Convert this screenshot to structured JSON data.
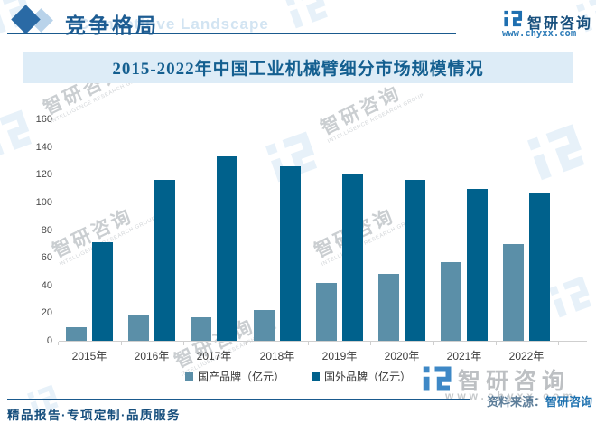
{
  "header": {
    "section_title": "竞争格局",
    "section_title_en": "Competitive Landscape",
    "brand_name": "智研咨询",
    "brand_url": "www.chyxx.com"
  },
  "chart_data": {
    "type": "bar",
    "title": "2015-2022年中国工业机械臂细分市场规模情况",
    "categories": [
      "2015年",
      "2016年",
      "2017年",
      "2018年",
      "2019年",
      "2020年",
      "2021年",
      "2022年"
    ],
    "series": [
      {
        "name": "国产品牌（亿元）",
        "color": "#5b8fa8",
        "values": [
          10,
          18,
          17,
          22,
          42,
          48,
          57,
          70
        ]
      },
      {
        "name": "国外品牌（亿元）",
        "color": "#00618c",
        "values": [
          71,
          116,
          133,
          126,
          120,
          116,
          110,
          107
        ]
      }
    ],
    "xlabel": "",
    "ylabel": "",
    "ylim": [
      0,
      160
    ],
    "ytick_step": 20,
    "grid": false,
    "legend_position": "bottom"
  },
  "footer": {
    "source_prefix": "资料来源：",
    "source_brand": "智研咨询",
    "tagline": "精品报告·专项定制·品质服务"
  },
  "watermark": {
    "brand": "智研咨询",
    "brand_en": "INTELLIGENCE RESEARCH GROUP",
    "url": "www.chyxx.com"
  },
  "colors": {
    "bar_domestic": "#5b8fa8",
    "bar_foreign": "#00618c",
    "accent_blue": "#1a5a8e",
    "title_band_bg": "#ddecf7",
    "title_text": "#145f90",
    "source_blue": "#1f72b0"
  }
}
